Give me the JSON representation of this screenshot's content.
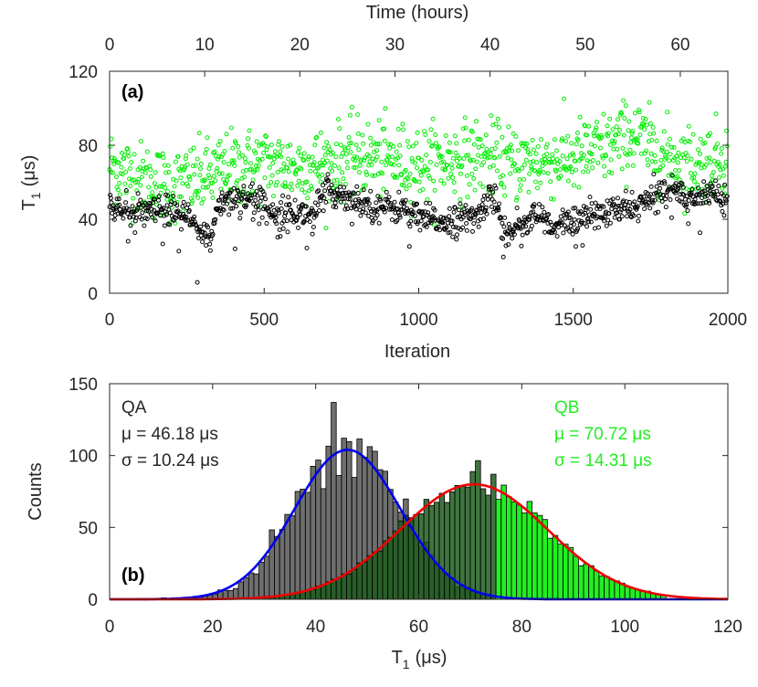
{
  "colors": {
    "qa_dots": "#000000",
    "qb_dots": "#00ee00",
    "qa_bar": "#6e6e6e",
    "qb_bar": "#22ee22",
    "overlap_bar": "#1d5c1d",
    "qa_fit": "#0000ee",
    "qb_fit": "#ee0000",
    "qb_text": "#22ee22"
  },
  "chart_data": [
    {
      "type": "scatter",
      "panel_label": "(a)",
      "xlabel": "Iteration",
      "ylabel_main": "T",
      "ylabel_sub": "1",
      "ylabel_unit": "(μs)",
      "x2label": "Time (hours)",
      "xlim": [
        0,
        2000
      ],
      "ylim": [
        0,
        120
      ],
      "x2lim": [
        0,
        65
      ],
      "xticks": [
        0,
        500,
        1000,
        1500,
        2000
      ],
      "xtick_labels": [
        "0",
        "500",
        "1000",
        "1500",
        "2000"
      ],
      "yticks": [
        0,
        40,
        80,
        120
      ],
      "ytick_labels": [
        "0",
        "40",
        "80",
        "120"
      ],
      "x2ticks": [
        0,
        10,
        20,
        30,
        40,
        50,
        60
      ],
      "x2tick_labels": [
        "0",
        "10",
        "20",
        "30",
        "40",
        "50",
        "60"
      ],
      "series": [
        {
          "name": "QA",
          "n_points": 2000,
          "trend": [
            [
              0,
              46
            ],
            [
              100,
              43
            ],
            [
              180,
              45
            ],
            [
              220,
              43
            ],
            [
              260,
              40
            ],
            [
              290,
              33
            ],
            [
              330,
              28
            ],
            [
              345,
              48
            ],
            [
              400,
              52
            ],
            [
              460,
              52
            ],
            [
              520,
              45
            ],
            [
              600,
              43
            ],
            [
              660,
              43
            ],
            [
              700,
              55
            ],
            [
              780,
              52
            ],
            [
              850,
              47
            ],
            [
              950,
              46
            ],
            [
              1000,
              40
            ],
            [
              1080,
              39
            ],
            [
              1150,
              40
            ],
            [
              1200,
              42
            ],
            [
              1230,
              56
            ],
            [
              1260,
              44
            ],
            [
              1280,
              32
            ],
            [
              1330,
              38
            ],
            [
              1400,
              42
            ],
            [
              1430,
              34
            ],
            [
              1500,
              40
            ],
            [
              1600,
              43
            ],
            [
              1680,
              46
            ],
            [
              1750,
              50
            ],
            [
              1800,
              57
            ],
            [
              1850,
              54
            ],
            [
              1900,
              52
            ],
            [
              1950,
              55
            ],
            [
              2000,
              51
            ]
          ],
          "spread": 4
        },
        {
          "name": "QB",
          "n_points": 2000,
          "trend": [
            [
              0,
              70
            ],
            [
              100,
              62
            ],
            [
              200,
              58
            ],
            [
              300,
              62
            ],
            [
              400,
              68
            ],
            [
              500,
              70
            ],
            [
              600,
              68
            ],
            [
              700,
              70
            ],
            [
              800,
              74
            ],
            [
              900,
              72
            ],
            [
              1000,
              70
            ],
            [
              1100,
              72
            ],
            [
              1200,
              74
            ],
            [
              1300,
              70
            ],
            [
              1400,
              71
            ],
            [
              1500,
              73
            ],
            [
              1600,
              78
            ],
            [
              1700,
              86
            ],
            [
              1750,
              78
            ],
            [
              1800,
              74
            ],
            [
              1900,
              70
            ],
            [
              2000,
              75
            ]
          ],
          "spread": 10
        }
      ]
    },
    {
      "type": "bar",
      "panel_label": "(b)",
      "xlabel_main": "T",
      "xlabel_sub": "1",
      "xlabel_unit": "(μs)",
      "ylabel": "Counts",
      "xlim": [
        0,
        120
      ],
      "ylim": [
        0,
        150
      ],
      "xticks": [
        0,
        20,
        40,
        60,
        80,
        100,
        120
      ],
      "xtick_labels": [
        "0",
        "20",
        "40",
        "60",
        "80",
        "100",
        "120"
      ],
      "yticks": [
        0,
        50,
        100,
        150
      ],
      "ytick_labels": [
        "0",
        "50",
        "100",
        "150"
      ],
      "bin_width": 1,
      "series": [
        {
          "name": "QA",
          "fit_mean": 46.18,
          "fit_sigma": 10.24,
          "fit_peak": 104
        },
        {
          "name": "QB",
          "fit_mean": 70.72,
          "fit_sigma": 14.31,
          "fit_peak": 80
        }
      ]
    }
  ],
  "stats": {
    "qa": {
      "name": "QA",
      "mu": "μ = 46.18 μs",
      "sigma": "σ = 10.24 μs"
    },
    "qb": {
      "name": "QB",
      "mu": "μ = 70.72 μs",
      "sigma": "σ = 14.31 μs"
    }
  }
}
